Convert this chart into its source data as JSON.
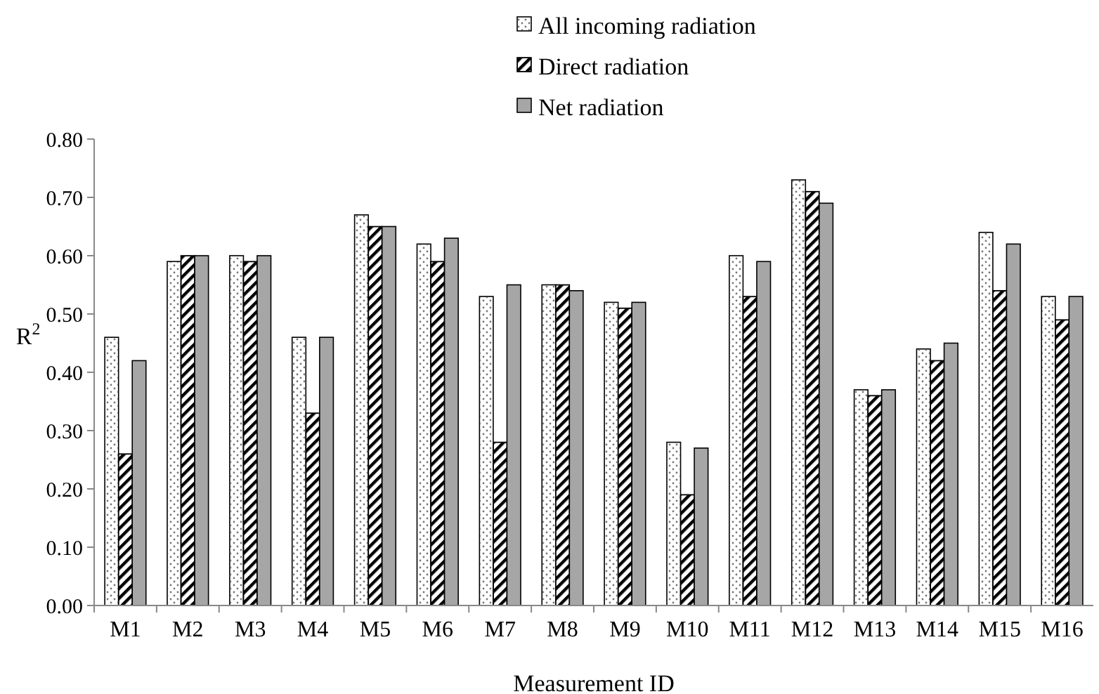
{
  "chart_data": {
    "type": "bar",
    "xlabel": "Measurement ID",
    "ylabel": "R$^{2}$",
    "categories": [
      "M1",
      "M2",
      "M3",
      "M4",
      "M5",
      "M6",
      "M7",
      "M8",
      "M9",
      "M10",
      "M11",
      "M12",
      "M13",
      "M14",
      "M15",
      "M16"
    ],
    "series": [
      {
        "name": "All incoming radiation",
        "color": "#ffffff",
        "values": [
          0.46,
          0.59,
          0.6,
          0.46,
          0.67,
          0.62,
          0.53,
          0.55,
          0.52,
          0.28,
          0.6,
          0.73,
          0.37,
          0.44,
          0.64,
          0.53
        ]
      },
      {
        "name": "Direct radiation",
        "color": "#000000",
        "values": [
          0.26,
          0.6,
          0.59,
          0.33,
          0.65,
          0.59,
          0.28,
          0.55,
          0.51,
          0.19,
          0.53,
          0.71,
          0.36,
          0.42,
          0.54,
          0.49
        ]
      },
      {
        "name": "Net radiation",
        "color": "#a6a6a6",
        "values": [
          0.42,
          0.6,
          0.6,
          0.46,
          0.65,
          0.63,
          0.55,
          0.54,
          0.52,
          0.27,
          0.59,
          0.69,
          0.37,
          0.45,
          0.62,
          0.53
        ]
      }
    ],
    "ylim": [
      0,
      0.8
    ],
    "yticks": [
      {
        "value": 0,
        "label": "0.00"
      },
      {
        "value": 0.1,
        "label": "0.10"
      },
      {
        "value": 0.2,
        "label": "0.20"
      },
      {
        "value": 0.3,
        "label": "0.30"
      },
      {
        "value": 0.4,
        "label": "0.40"
      },
      {
        "value": 0.5,
        "label": "0.50"
      },
      {
        "value": 0.6,
        "label": "0.60"
      },
      {
        "value": 0.7,
        "label": "0.70"
      },
      {
        "value": 0.8,
        "label": "0.80"
      }
    ],
    "grid": false,
    "legend": "top"
  }
}
